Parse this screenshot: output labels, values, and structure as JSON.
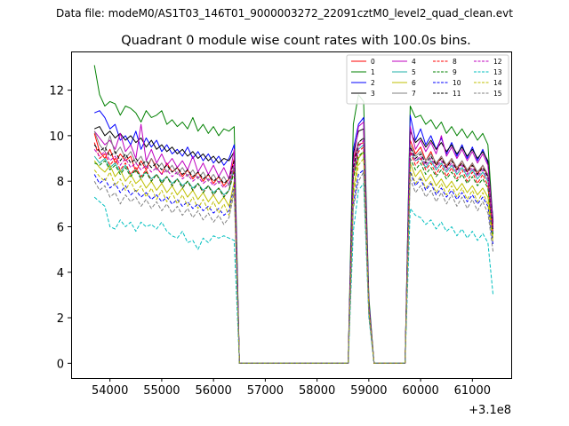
{
  "suptitle": "Data file: modeM0/AS1T03_146T01_9000003272_22091cztM0_level2_quad_clean.evt",
  "chart_data": {
    "type": "line",
    "title": "Quadrant 0 module wise count rates with 100.0s bins.",
    "xlabel": "",
    "ylabel": "",
    "x_offset_label": "+3.1e8",
    "xlim": [
      53250,
      61750
    ],
    "ylim": [
      -0.65,
      13.7
    ],
    "xticks": [
      54000,
      55000,
      56000,
      57000,
      58000,
      59000,
      60000,
      61000
    ],
    "yticks": [
      0,
      2,
      4,
      6,
      8,
      10,
      12
    ],
    "grid": false,
    "legend_position": "top-right",
    "segments": [
      {
        "start": 53700,
        "count": 28
      },
      {
        "start": 58700,
        "count": 4
      },
      {
        "start": 59800,
        "count": 17
      }
    ],
    "gaps": [
      {
        "from": 56500,
        "to": 58600
      },
      {
        "from": 59100,
        "to": 59700
      }
    ],
    "series": [
      {
        "name": "0",
        "color": "#ff0000",
        "dashed": false,
        "seg1": [
          10.1,
          9.3,
          9.0,
          9.4,
          8.8,
          9.2,
          8.9,
          9.1,
          8.4,
          8.9,
          8.5,
          9.0,
          8.6,
          8.3,
          8.8,
          8.4,
          8.6,
          8.2,
          8.5,
          8.1,
          8.4,
          8.0,
          8.3,
          7.9,
          8.2,
          7.8,
          8.1,
          9.0
        ],
        "seg2": [
          8.9,
          9.6,
          9.7,
          2.5
        ],
        "seg3": [
          9.8,
          9.2,
          9.5,
          8.9,
          9.3,
          8.7,
          9.1,
          8.6,
          9.0,
          8.5,
          8.9,
          8.4,
          8.8,
          8.3,
          8.7,
          8.2,
          6.0
        ]
      },
      {
        "name": "1",
        "color": "#008000",
        "dashed": false,
        "seg1": [
          13.1,
          11.8,
          11.3,
          11.5,
          11.4,
          10.9,
          11.3,
          11.2,
          11.0,
          10.6,
          11.1,
          10.8,
          10.9,
          11.1,
          10.5,
          10.7,
          10.4,
          10.6,
          10.3,
          10.8,
          10.2,
          10.5,
          10.1,
          10.4,
          10.0,
          10.3,
          10.2,
          10.4
        ],
        "seg2": [
          10.5,
          11.8,
          11.5,
          2.9
        ],
        "seg3": [
          11.3,
          10.8,
          10.9,
          10.5,
          10.7,
          10.3,
          10.6,
          10.1,
          10.4,
          10.0,
          10.3,
          9.9,
          10.2,
          9.8,
          10.1,
          9.6,
          6.1
        ]
      },
      {
        "name": "2",
        "color": "#0000ff",
        "dashed": false,
        "seg1": [
          11.0,
          11.1,
          10.8,
          10.3,
          10.5,
          9.8,
          10.0,
          9.6,
          10.2,
          9.4,
          9.9,
          9.5,
          9.8,
          9.3,
          9.6,
          9.2,
          9.4,
          9.1,
          9.5,
          9.0,
          9.3,
          8.9,
          9.2,
          8.8,
          9.1,
          8.7,
          9.0,
          9.6
        ],
        "seg2": [
          9.4,
          10.5,
          10.8,
          2.7
        ],
        "seg3": [
          10.9,
          9.8,
          10.3,
          9.6,
          10.0,
          9.4,
          9.9,
          9.2,
          9.7,
          9.1,
          9.6,
          9.0,
          9.5,
          8.9,
          9.4,
          8.8,
          6.3
        ]
      },
      {
        "name": "3",
        "color": "#000000",
        "dashed": false,
        "seg1": [
          10.3,
          10.4,
          10.0,
          10.2,
          9.9,
          10.1,
          9.8,
          10.0,
          9.7,
          9.9,
          9.5,
          9.8,
          9.4,
          9.6,
          9.3,
          9.5,
          9.2,
          9.4,
          9.1,
          9.3,
          9.0,
          9.2,
          8.9,
          9.1,
          8.8,
          9.0,
          8.9,
          9.3
        ],
        "seg2": [
          9.2,
          10.2,
          10.3,
          2.6
        ],
        "seg3": [
          10.2,
          9.7,
          9.9,
          9.5,
          9.8,
          9.4,
          9.7,
          9.3,
          9.6,
          9.2,
          9.5,
          9.1,
          9.4,
          9.0,
          9.3,
          8.9,
          6.2
        ]
      },
      {
        "name": "4",
        "color": "#bf00bf",
        "dashed": false,
        "seg1": [
          10.2,
          9.9,
          9.6,
          9.8,
          9.4,
          10.1,
          9.3,
          9.6,
          9.0,
          10.5,
          8.9,
          9.4,
          8.8,
          9.2,
          8.7,
          9.0,
          8.6,
          8.9,
          8.5,
          9.1,
          8.4,
          8.8,
          8.3,
          8.7,
          8.2,
          8.6,
          8.1,
          9.4
        ],
        "seg2": [
          8.8,
          10.4,
          10.6,
          2.6
        ],
        "seg3": [
          10.4,
          9.4,
          9.8,
          9.3,
          9.7,
          9.2,
          10.0,
          9.1,
          9.5,
          9.0,
          9.4,
          8.9,
          9.3,
          8.8,
          9.2,
          8.7,
          6.1
        ]
      },
      {
        "name": "5",
        "color": "#20b2aa",
        "dashed": false,
        "seg1": [
          9.1,
          8.8,
          9.0,
          8.6,
          8.8,
          8.4,
          8.7,
          8.3,
          8.5,
          8.2,
          8.4,
          8.1,
          8.3,
          8.0,
          8.2,
          7.9,
          8.1,
          7.8,
          8.0,
          7.7,
          7.9,
          7.6,
          7.8,
          7.5,
          7.7,
          7.4,
          7.6,
          8.6
        ],
        "seg2": [
          8.3,
          9.4,
          9.6,
          2.4
        ],
        "seg3": [
          9.3,
          8.9,
          9.0,
          8.6,
          8.9,
          8.5,
          8.8,
          8.4,
          8.7,
          8.3,
          8.6,
          8.2,
          8.5,
          8.1,
          8.4,
          8.0,
          5.7
        ]
      },
      {
        "name": "6",
        "color": "#bfbf00",
        "dashed": false,
        "seg1": [
          8.9,
          8.6,
          8.4,
          8.7,
          8.2,
          8.5,
          8.0,
          8.3,
          7.9,
          8.1,
          7.7,
          8.0,
          7.6,
          7.9,
          7.5,
          7.8,
          7.4,
          7.7,
          7.3,
          7.6,
          7.2,
          7.5,
          7.1,
          7.4,
          7.0,
          7.3,
          6.9,
          8.0
        ],
        "seg2": [
          7.6,
          9.0,
          9.3,
          2.3
        ],
        "seg3": [
          8.8,
          8.2,
          8.5,
          8.0,
          8.3,
          7.8,
          8.1,
          7.7,
          8.0,
          7.6,
          7.9,
          7.5,
          7.8,
          7.4,
          7.7,
          7.3,
          5.5
        ]
      },
      {
        "name": "7",
        "color": "#808080",
        "dashed": false,
        "seg1": [
          10.2,
          9.6,
          9.3,
          10.0,
          9.2,
          9.5,
          9.0,
          9.3,
          8.8,
          9.1,
          8.6,
          9.0,
          8.5,
          8.8,
          8.4,
          8.7,
          8.3,
          8.6,
          8.2,
          8.5,
          8.1,
          8.4,
          8.0,
          8.3,
          7.9,
          8.2,
          7.8,
          8.7
        ],
        "seg2": [
          8.5,
          9.7,
          9.9,
          2.5
        ],
        "seg3": [
          9.6,
          9.1,
          9.3,
          8.9,
          9.2,
          8.8,
          9.1,
          8.7,
          9.0,
          8.6,
          8.9,
          8.5,
          8.8,
          8.4,
          8.7,
          8.3,
          5.9
        ]
      },
      {
        "name": "8",
        "color": "#ff0000",
        "dashed": true,
        "seg1": [
          9.7,
          9.0,
          9.2,
          8.7,
          9.0,
          8.5,
          8.8,
          8.3,
          8.6,
          8.2,
          8.5,
          8.0,
          8.3,
          7.9,
          8.2,
          7.8,
          8.1,
          7.7,
          8.0,
          7.6,
          7.9,
          7.5,
          7.8,
          7.4,
          7.7,
          7.3,
          7.6,
          8.5
        ],
        "seg2": [
          8.2,
          9.3,
          9.5,
          2.4
        ],
        "seg3": [
          9.3,
          8.7,
          9.0,
          8.5,
          8.8,
          8.3,
          8.7,
          8.2,
          8.6,
          8.1,
          8.5,
          8.0,
          8.4,
          7.9,
          8.3,
          7.8,
          5.7
        ]
      },
      {
        "name": "9",
        "color": "#008000",
        "dashed": true,
        "seg1": [
          8.8,
          8.7,
          8.9,
          8.5,
          8.7,
          8.3,
          8.6,
          8.2,
          8.5,
          8.1,
          8.4,
          8.0,
          8.3,
          7.9,
          8.2,
          7.8,
          8.1,
          7.7,
          8.0,
          7.6,
          7.9,
          7.5,
          7.8,
          7.4,
          7.7,
          7.3,
          7.6,
          8.4
        ],
        "seg2": [
          8.1,
          9.1,
          9.3,
          2.4
        ],
        "seg3": [
          9.0,
          8.5,
          8.8,
          8.3,
          8.6,
          8.2,
          8.5,
          8.1,
          8.4,
          8.0,
          8.3,
          7.9,
          8.2,
          7.8,
          8.1,
          7.7,
          5.6
        ]
      },
      {
        "name": "10",
        "color": "#0000ff",
        "dashed": true,
        "seg1": [
          8.3,
          7.9,
          8.1,
          7.7,
          7.9,
          7.5,
          7.8,
          7.4,
          7.6,
          7.3,
          7.5,
          7.2,
          7.4,
          7.1,
          7.3,
          7.0,
          7.2,
          6.9,
          7.1,
          6.8,
          7.0,
          6.7,
          6.9,
          6.6,
          6.8,
          6.5,
          6.7,
          7.8
        ],
        "seg2": [
          7.0,
          8.3,
          8.5,
          2.2
        ],
        "seg3": [
          8.4,
          7.8,
          8.1,
          7.6,
          7.9,
          7.4,
          7.7,
          7.3,
          7.6,
          7.2,
          7.5,
          7.1,
          7.4,
          7.0,
          7.3,
          6.9,
          5.2
        ]
      },
      {
        "name": "11",
        "color": "#000000",
        "dashed": true,
        "seg1": [
          9.6,
          9.3,
          9.5,
          9.1,
          9.3,
          8.9,
          9.2,
          8.8,
          9.0,
          8.7,
          8.9,
          8.6,
          8.8,
          8.5,
          8.7,
          8.4,
          8.6,
          8.3,
          8.5,
          8.2,
          8.4,
          8.1,
          8.3,
          8.0,
          8.2,
          7.9,
          8.1,
          8.9
        ],
        "seg2": [
          8.6,
          9.7,
          9.9,
          2.5
        ],
        "seg3": [
          9.5,
          9.0,
          9.2,
          8.8,
          9.1,
          8.7,
          9.0,
          8.6,
          8.9,
          8.5,
          8.8,
          8.4,
          8.7,
          8.3,
          8.6,
          8.2,
          5.9
        ]
      },
      {
        "name": "12",
        "color": "#bf00bf",
        "dashed": true,
        "seg1": [
          9.4,
          9.1,
          9.3,
          8.9,
          9.1,
          8.7,
          9.0,
          8.6,
          8.8,
          8.5,
          8.7,
          8.4,
          8.6,
          8.3,
          8.5,
          8.2,
          8.4,
          8.1,
          8.3,
          8.0,
          8.2,
          7.9,
          8.1,
          7.8,
          8.0,
          7.7,
          7.9,
          8.8
        ],
        "seg2": [
          8.4,
          9.5,
          9.8,
          2.5
        ],
        "seg3": [
          9.4,
          8.9,
          9.1,
          8.7,
          9.0,
          8.6,
          8.9,
          8.5,
          8.8,
          8.4,
          8.7,
          8.3,
          8.6,
          8.2,
          8.5,
          8.1,
          5.8
        ]
      },
      {
        "name": "13",
        "color": "#00bfbf",
        "dashed": true,
        "seg1": [
          7.3,
          7.1,
          6.9,
          6.0,
          5.9,
          6.3,
          6.0,
          6.2,
          5.8,
          6.2,
          6.0,
          6.1,
          5.9,
          6.2,
          5.8,
          5.6,
          5.5,
          5.8,
          5.3,
          5.4,
          5.0,
          5.5,
          5.3,
          5.6,
          5.5,
          5.6,
          5.5,
          5.4
        ],
        "seg2": [
          5.8,
          7.6,
          7.9,
          2.0
        ],
        "seg3": [
          6.8,
          6.5,
          6.4,
          6.1,
          6.3,
          5.9,
          6.2,
          5.8,
          6.0,
          5.6,
          5.9,
          5.5,
          5.8,
          5.4,
          5.7,
          5.3,
          3.0
        ]
      },
      {
        "name": "14",
        "color": "#bfbf00",
        "dashed": true,
        "seg1": [
          8.5,
          8.2,
          8.0,
          8.4,
          7.8,
          8.1,
          7.6,
          8.0,
          7.5,
          7.8,
          7.3,
          7.7,
          7.2,
          7.6,
          7.1,
          7.5,
          7.0,
          7.4,
          6.9,
          7.3,
          6.8,
          7.2,
          6.7,
          7.1,
          6.6,
          7.0,
          6.5,
          7.7
        ],
        "seg2": [
          7.3,
          8.7,
          9.0,
          2.3
        ],
        "seg3": [
          8.5,
          7.9,
          8.2,
          7.7,
          8.0,
          7.5,
          7.9,
          7.4,
          7.8,
          7.3,
          7.7,
          7.2,
          7.6,
          7.1,
          7.5,
          7.0,
          5.3
        ]
      },
      {
        "name": "15",
        "color": "#808080",
        "dashed": true,
        "seg1": [
          8.0,
          7.6,
          7.8,
          7.3,
          7.5,
          7.0,
          7.4,
          7.1,
          7.3,
          6.9,
          7.2,
          6.8,
          7.1,
          6.7,
          7.0,
          6.6,
          6.9,
          6.5,
          6.8,
          6.4,
          6.7,
          6.3,
          6.6,
          6.2,
          6.5,
          6.1,
          6.4,
          7.5
        ],
        "seg2": [
          6.8,
          8.0,
          8.4,
          2.1
        ],
        "seg3": [
          8.1,
          7.5,
          7.8,
          7.3,
          7.6,
          7.1,
          7.5,
          7.0,
          7.4,
          6.9,
          7.3,
          6.8,
          7.2,
          6.7,
          7.1,
          6.6,
          4.9
        ]
      }
    ]
  }
}
